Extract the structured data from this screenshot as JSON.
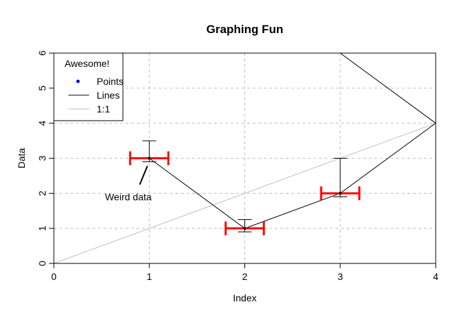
{
  "chart_data": {
    "type": "scatter",
    "title": "Graphing Fun",
    "xlabel": "Index",
    "ylabel": "Data",
    "xlim": [
      0,
      4
    ],
    "ylim": [
      0,
      6
    ],
    "x_ticks": [
      "0",
      "1",
      "2",
      "3",
      "4"
    ],
    "y_ticks": [
      "0",
      "1",
      "2",
      "3",
      "4",
      "5",
      "6"
    ],
    "grid": true,
    "grid_x": [
      1,
      2,
      3
    ],
    "grid_y": [
      1,
      2,
      3,
      4,
      5
    ],
    "points": [
      {
        "x": 1,
        "y": 3,
        "y_err_low": 2.9,
        "y_err_high": 3.5,
        "x_err_low": 0.8,
        "x_err_high": 1.2
      },
      {
        "x": 2,
        "y": 1,
        "y_err_low": 0.9,
        "y_err_high": 1.25,
        "x_err_low": 1.8,
        "x_err_high": 2.2
      },
      {
        "x": 3,
        "y": 2,
        "y_err_low": 1.9,
        "y_err_high": 3.0,
        "x_err_low": 2.8,
        "x_err_high": 3.2
      }
    ],
    "line_series": {
      "name": "Lines",
      "x": [
        1,
        2,
        3,
        4,
        3
      ],
      "y": [
        3,
        1,
        2,
        4,
        6
      ]
    },
    "reference_line": {
      "name": "1:1",
      "x": [
        0,
        4
      ],
      "y": [
        0,
        4
      ]
    },
    "annotation": {
      "text": "Weird data",
      "label_x": 0.78,
      "label_y": 1.9,
      "arrow_from": [
        0.9,
        2.25
      ],
      "arrow_to": [
        0.98,
        2.78
      ]
    },
    "legend": {
      "title": "Awesome!",
      "position": "top-left",
      "entries": [
        {
          "label": "Points",
          "kind": "point",
          "color": "#0000cd"
        },
        {
          "label": "Lines",
          "kind": "line",
          "color": "#000000"
        },
        {
          "label": "1:1",
          "kind": "line",
          "color": "#bebebe"
        }
      ]
    },
    "colors": {
      "points": "#000000",
      "y_error_bars": "#000000",
      "x_error_bars": "#ff0000",
      "lines": "#000000",
      "reference": "#bebebe",
      "grid": "#bebebe"
    }
  }
}
